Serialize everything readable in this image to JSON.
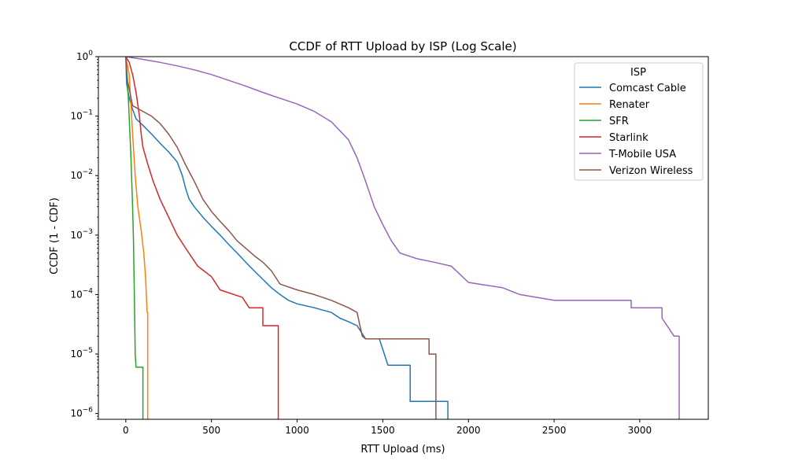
{
  "chart_data": {
    "type": "line",
    "title": "CCDF of RTT Upload by ISP (Log Scale)",
    "xlabel": "RTT Upload (ms)",
    "ylabel": "CCDF (1 - CDF)",
    "xlim": [
      -160,
      3400
    ],
    "ylim": [
      8e-07,
      1
    ],
    "y_scale": "log",
    "grid": false,
    "legend": {
      "title": "ISP",
      "position": "upper right"
    },
    "x_ticks": [
      0,
      500,
      1000,
      1500,
      2000,
      2500,
      3000
    ],
    "x_tick_labels": [
      "0",
      "500",
      "1000",
      "1500",
      "2000",
      "2500",
      "3000"
    ],
    "y_ticks": [
      1e-06,
      1e-05,
      0.0001,
      0.001,
      0.01,
      0.1,
      1
    ],
    "y_tick_labels": [
      {
        "base": "10",
        "exp": "−6"
      },
      {
        "base": "10",
        "exp": "−5"
      },
      {
        "base": "10",
        "exp": "−4"
      },
      {
        "base": "10",
        "exp": "−3"
      },
      {
        "base": "10",
        "exp": "−2"
      },
      {
        "base": "10",
        "exp": "−1"
      },
      {
        "base": "10",
        "exp": "0"
      }
    ],
    "series": [
      {
        "name": "Comcast Cable",
        "color": "#1f77b4",
        "points": [
          [
            0,
            1
          ],
          [
            5,
            0.35
          ],
          [
            20,
            0.2
          ],
          [
            40,
            0.13
          ],
          [
            60,
            0.09
          ],
          [
            100,
            0.07
          ],
          [
            150,
            0.05
          ],
          [
            200,
            0.035
          ],
          [
            250,
            0.025
          ],
          [
            300,
            0.017
          ],
          [
            330,
            0.01
          ],
          [
            350,
            0.006
          ],
          [
            370,
            0.004
          ],
          [
            400,
            0.003
          ],
          [
            450,
            0.002
          ],
          [
            500,
            0.0014
          ],
          [
            550,
            0.001
          ],
          [
            600,
            0.0007
          ],
          [
            650,
            0.0005
          ],
          [
            700,
            0.00035
          ],
          [
            750,
            0.00025
          ],
          [
            800,
            0.00018
          ],
          [
            850,
            0.00013
          ],
          [
            900,
            0.0001
          ],
          [
            950,
            8e-05
          ],
          [
            1000,
            7e-05
          ],
          [
            1100,
            6e-05
          ],
          [
            1200,
            5e-05
          ],
          [
            1250,
            4e-05
          ],
          [
            1300,
            3.5e-05
          ],
          [
            1350,
            3e-05
          ],
          [
            1400,
            1.8e-05
          ],
          [
            1440,
            1.8e-05
          ],
          [
            1480,
            1.8e-05
          ],
          [
            1500,
            1.2e-05
          ],
          [
            1530,
            6.5e-06
          ],
          [
            1660,
            6.5e-06
          ],
          [
            1660,
            1.6e-06
          ],
          [
            1880,
            1.6e-06
          ],
          [
            1880,
            8e-07
          ]
        ]
      },
      {
        "name": "Renater",
        "color": "#ff7f0e",
        "points": [
          [
            0,
            1
          ],
          [
            20,
            0.5
          ],
          [
            40,
            0.05
          ],
          [
            55,
            0.01
          ],
          [
            70,
            0.003
          ],
          [
            90,
            0.0012
          ],
          [
            105,
            0.0005
          ],
          [
            115,
            0.0002
          ],
          [
            125,
            5e-05
          ],
          [
            128,
            5e-05
          ],
          [
            128,
            8e-07
          ]
        ]
      },
      {
        "name": "SFR",
        "color": "#2ca02c",
        "points": [
          [
            0,
            1
          ],
          [
            15,
            0.2
          ],
          [
            30,
            0.02
          ],
          [
            40,
            0.003
          ],
          [
            45,
            0.0008
          ],
          [
            50,
            0.0001
          ],
          [
            55,
            1e-05
          ],
          [
            60,
            6e-06
          ],
          [
            100,
            6e-06
          ],
          [
            100,
            8e-07
          ]
        ]
      },
      {
        "name": "Starlink",
        "color": "#d62728",
        "points": [
          [
            0,
            1
          ],
          [
            20,
            0.8
          ],
          [
            40,
            0.5
          ],
          [
            60,
            0.25
          ],
          [
            80,
            0.1
          ],
          [
            90,
            0.05
          ],
          [
            100,
            0.03
          ],
          [
            130,
            0.015
          ],
          [
            160,
            0.008
          ],
          [
            200,
            0.004
          ],
          [
            250,
            0.002
          ],
          [
            300,
            0.001
          ],
          [
            350,
            0.0006
          ],
          [
            420,
            0.0003
          ],
          [
            500,
            0.0002
          ],
          [
            550,
            0.00012
          ],
          [
            680,
            9e-05
          ],
          [
            720,
            6e-05
          ],
          [
            800,
            6e-05
          ],
          [
            800,
            3e-05
          ],
          [
            890,
            3e-05
          ],
          [
            890,
            8e-07
          ]
        ]
      },
      {
        "name": "T-Mobile USA",
        "color": "#9467bd",
        "points": [
          [
            0,
            1
          ],
          [
            100,
            0.9
          ],
          [
            200,
            0.8
          ],
          [
            300,
            0.7
          ],
          [
            400,
            0.6
          ],
          [
            500,
            0.5
          ],
          [
            600,
            0.4
          ],
          [
            700,
            0.32
          ],
          [
            800,
            0.25
          ],
          [
            900,
            0.2
          ],
          [
            1000,
            0.16
          ],
          [
            1100,
            0.12
          ],
          [
            1200,
            0.08
          ],
          [
            1300,
            0.04
          ],
          [
            1350,
            0.02
          ],
          [
            1400,
            0.008
          ],
          [
            1450,
            0.003
          ],
          [
            1500,
            0.0015
          ],
          [
            1550,
            0.0008
          ],
          [
            1600,
            0.0005
          ],
          [
            1700,
            0.0004
          ],
          [
            1800,
            0.00035
          ],
          [
            1900,
            0.0003
          ],
          [
            1950,
            0.00022
          ],
          [
            2000,
            0.00016
          ],
          [
            2200,
            0.00013
          ],
          [
            2300,
            0.0001
          ],
          [
            2500,
            8e-05
          ],
          [
            2950,
            8e-05
          ],
          [
            2950,
            6e-05
          ],
          [
            3130,
            6e-05
          ],
          [
            3130,
            4e-05
          ],
          [
            3200,
            2e-05
          ],
          [
            3230,
            2e-05
          ],
          [
            3230,
            8e-07
          ]
        ]
      },
      {
        "name": "Verizon Wireless",
        "color": "#8c564b",
        "points": [
          [
            0,
            1
          ],
          [
            10,
            0.4
          ],
          [
            40,
            0.15
          ],
          [
            100,
            0.12
          ],
          [
            150,
            0.1
          ],
          [
            200,
            0.075
          ],
          [
            250,
            0.05
          ],
          [
            300,
            0.03
          ],
          [
            350,
            0.015
          ],
          [
            400,
            0.008
          ],
          [
            450,
            0.004
          ],
          [
            500,
            0.0025
          ],
          [
            550,
            0.0017
          ],
          [
            600,
            0.0012
          ],
          [
            650,
            0.0008
          ],
          [
            700,
            0.0006
          ],
          [
            750,
            0.00045
          ],
          [
            800,
            0.00035
          ],
          [
            850,
            0.00025
          ],
          [
            900,
            0.00015
          ],
          [
            1000,
            0.00012
          ],
          [
            1100,
            0.0001
          ],
          [
            1200,
            8e-05
          ],
          [
            1300,
            6e-05
          ],
          [
            1350,
            5e-05
          ],
          [
            1380,
            2e-05
          ],
          [
            1400,
            1.8e-05
          ],
          [
            1770,
            1.8e-05
          ],
          [
            1770,
            1e-05
          ],
          [
            1810,
            1e-05
          ],
          [
            1810,
            8e-07
          ]
        ]
      }
    ]
  }
}
